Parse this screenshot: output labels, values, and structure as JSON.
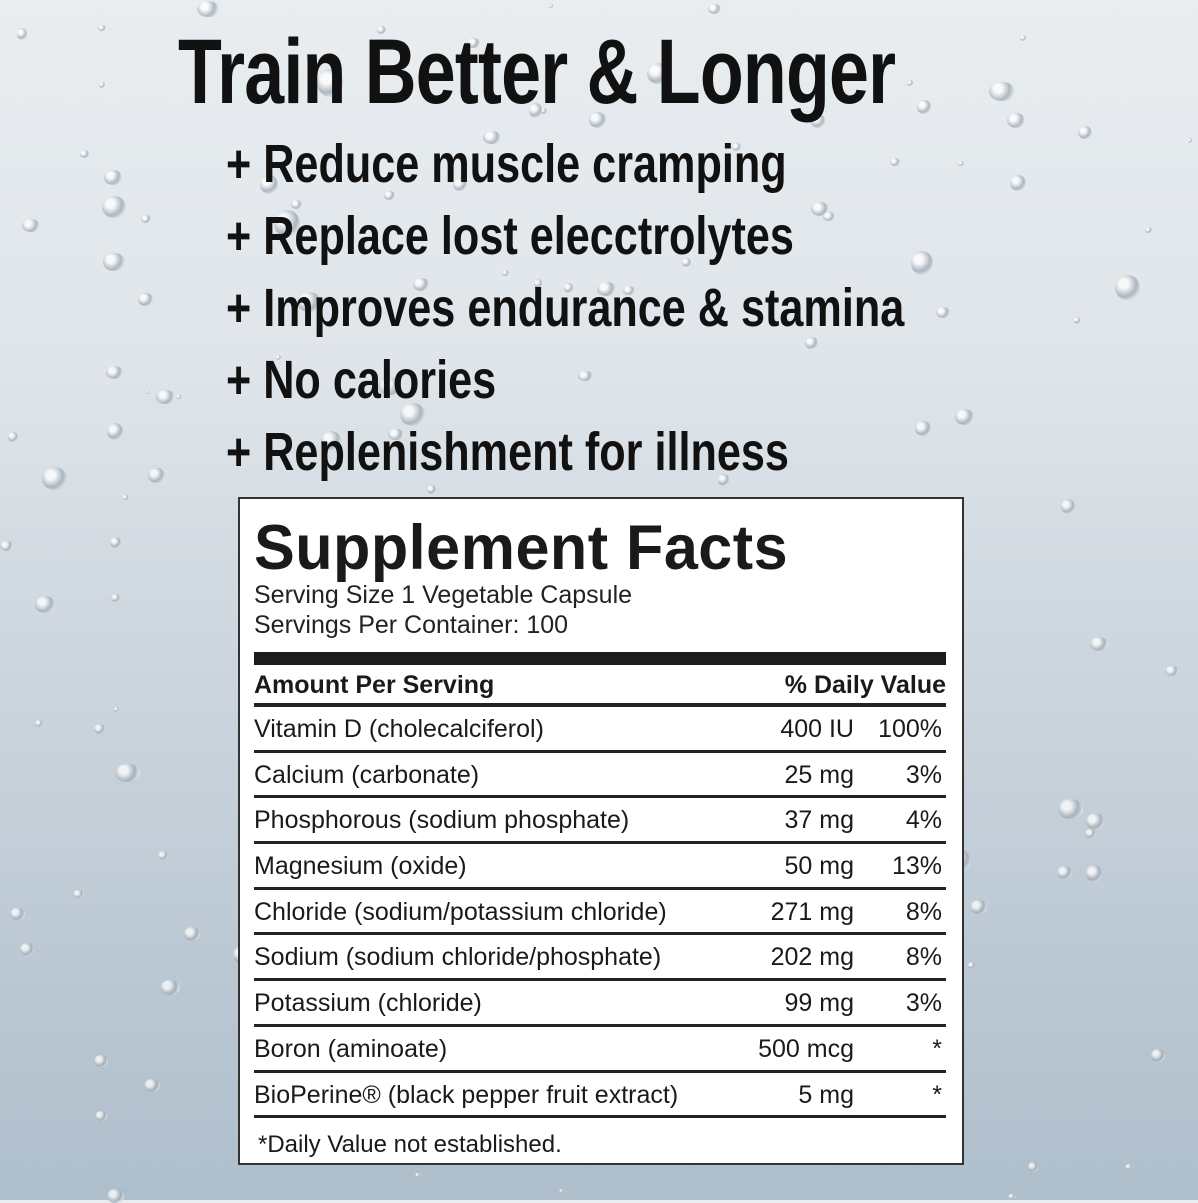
{
  "headline": "Train Better & Longer",
  "benefits": [
    "+ Reduce muscle cramping",
    "+ Replace lost elecctrolytes",
    "+ Improves endurance & stamina",
    "+ No calories",
    "+ Replenishment for illness"
  ],
  "facts": {
    "title": "Supplement Facts",
    "serving_size": "Serving Size 1 Vegetable Capsule",
    "servings_per_container": "Servings Per Container: 100",
    "header_amount": "Amount Per Serving",
    "header_dv": "% Daily Value",
    "rows": [
      {
        "name": "Vitamin D (cholecalciferol)",
        "amount": "400 IU",
        "dv": "100%"
      },
      {
        "name": "Calcium (carbonate)",
        "amount": "25 mg",
        "dv": "3%"
      },
      {
        "name": "Phosphorous (sodium phosphate)",
        "amount": "37 mg",
        "dv": "4%"
      },
      {
        "name": "Magnesium (oxide)",
        "amount": "50 mg",
        "dv": "13%"
      },
      {
        "name": "Chloride (sodium/potassium chloride)",
        "amount": "271 mg",
        "dv": "8%"
      },
      {
        "name": "Sodium (sodium chloride/phosphate)",
        "amount": "202 mg",
        "dv": "8%"
      },
      {
        "name": "Potassium (chloride)",
        "amount": "99 mg",
        "dv": "3%"
      },
      {
        "name": "Boron (aminoate)",
        "amount": "500 mcg",
        "dv": "*"
      },
      {
        "name": "BioPerine® (black pepper fruit extract)",
        "amount": "5 mg",
        "dv": "*"
      }
    ],
    "footnote": "*Daily Value not established."
  }
}
